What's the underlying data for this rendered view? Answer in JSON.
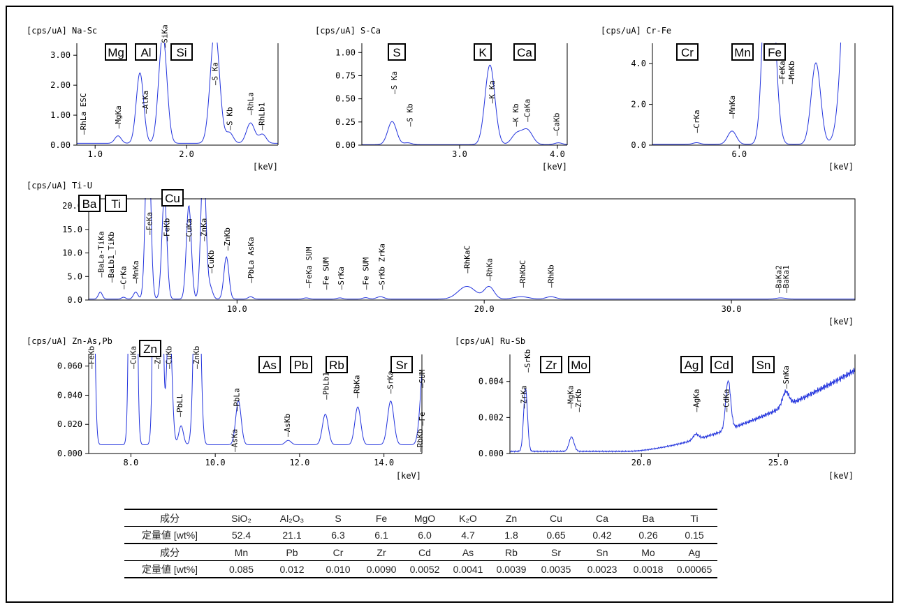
{
  "chart_data": [
    {
      "id": "na_sc",
      "type": "line",
      "title": "[cps/uA] Na-Sc",
      "xlabel": "[keV]",
      "xlim": [
        0.8,
        3.0
      ],
      "ylim": [
        0.0,
        3.4
      ],
      "xticks": [
        1.0,
        2.0
      ],
      "xtick_labels": [
        "1.0",
        "2.0"
      ],
      "yticks": [
        0.0,
        1.0,
        2.0,
        3.0
      ],
      "ytick_labels": [
        "0.00",
        "1.00",
        "2.00",
        "3.00"
      ],
      "baseline": 0.06,
      "peaks": [
        {
          "x": 1.25,
          "h": 0.25,
          "w": 0.035
        },
        {
          "x": 1.49,
          "h": 2.35,
          "w": 0.04
        },
        {
          "x": 1.74,
          "h": 3.6,
          "w": 0.045
        },
        {
          "x": 2.31,
          "h": 3.8,
          "w": 0.05
        },
        {
          "x": 2.47,
          "h": 0.35,
          "w": 0.04
        },
        {
          "x": 2.7,
          "h": 0.68,
          "w": 0.045
        },
        {
          "x": 2.83,
          "h": 0.3,
          "w": 0.04
        }
      ],
      "peak_labels": [
        {
          "text": "RhLa ESC",
          "x": 0.87,
          "y": 0.35
        },
        {
          "text": "MgKa",
          "x": 1.25,
          "y": 0.55
        },
        {
          "text": "AlKa",
          "x": 1.55,
          "y": 1.05
        },
        {
          "text": "SiKa",
          "x": 1.76,
          "y": 3.25
        },
        {
          "text": "S Ka",
          "x": 2.31,
          "y": 2.0
        },
        {
          "text": "S Kb",
          "x": 2.47,
          "y": 0.5
        },
        {
          "text": "RhLa",
          "x": 2.7,
          "y": 1.0
        },
        {
          "text": "RhLb1",
          "x": 2.82,
          "y": 0.5
        }
      ],
      "element_boxes": [
        "Mg",
        "Al",
        "Si"
      ]
    },
    {
      "id": "s_ca",
      "type": "line",
      "title": "[cps/uA] S-Ca",
      "xlabel": "[keV]",
      "xlim": [
        2.0,
        4.1
      ],
      "ylim": [
        0.0,
        1.1
      ],
      "xticks": [
        3.0,
        4.0
      ],
      "xtick_labels": [
        "3.0",
        "4.0"
      ],
      "yticks": [
        0.0,
        0.25,
        0.5,
        0.75,
        1.0
      ],
      "ytick_labels": [
        "0.00",
        "0.25",
        "0.50",
        "0.75",
        "1.00"
      ],
      "baseline": 0.005,
      "peaks": [
        {
          "x": 2.31,
          "h": 0.25,
          "w": 0.045
        },
        {
          "x": 2.47,
          "h": 0.02,
          "w": 0.04
        },
        {
          "x": 3.31,
          "h": 0.86,
          "w": 0.05
        },
        {
          "x": 3.58,
          "h": 0.11,
          "w": 0.05
        },
        {
          "x": 3.69,
          "h": 0.16,
          "w": 0.055
        },
        {
          "x": 4.01,
          "h": 0.02,
          "w": 0.04
        }
      ],
      "peak_labels": [
        {
          "text": "S Ka",
          "x": 2.33,
          "y": 0.55
        },
        {
          "text": "S Kb",
          "x": 2.49,
          "y": 0.2
        },
        {
          "text": "K Ka",
          "x": 3.33,
          "y": 0.45
        },
        {
          "text": "K Kb",
          "x": 3.57,
          "y": 0.2
        },
        {
          "text": "CaKa",
          "x": 3.69,
          "y": 0.25
        },
        {
          "text": "CaKb",
          "x": 3.99,
          "y": 0.1
        }
      ],
      "element_boxes": [
        "S",
        "K",
        "Ca"
      ]
    },
    {
      "id": "cr_fe",
      "type": "line",
      "title": "[cps/uA] Cr-Fe",
      "xlabel": "[keV]",
      "xlim": [
        4.8,
        7.6
      ],
      "ylim": [
        0.0,
        5.0
      ],
      "xticks": [
        6.0
      ],
      "xtick_labels": [
        "6.0"
      ],
      "yticks": [
        0.0,
        2.0,
        4.0
      ],
      "ytick_labels": [
        "0.0",
        "2.0",
        "4.0"
      ],
      "baseline": 0.04,
      "peaks": [
        {
          "x": 5.41,
          "h": 0.08,
          "w": 0.05
        },
        {
          "x": 5.9,
          "h": 0.65,
          "w": 0.06
        },
        {
          "x": 6.4,
          "h": 12.0,
          "w": 0.065
        },
        {
          "x": 6.49,
          "h": 2.0,
          "w": 0.06
        },
        {
          "x": 7.06,
          "h": 4.0,
          "w": 0.065
        },
        {
          "x": 7.6,
          "h": 25.0,
          "w": 0.11
        }
      ],
      "peak_labels": [
        {
          "text": "CrKa",
          "x": 5.41,
          "y": 0.6
        },
        {
          "text": "MnKa",
          "x": 5.9,
          "y": 1.3
        },
        {
          "text": "FeKa",
          "x": 6.59,
          "y": 3.0
        },
        {
          "text": "MnKb",
          "x": 6.72,
          "y": 3.0
        }
      ],
      "element_boxes": [
        "Cr",
        "Mn",
        "Fe"
      ]
    },
    {
      "id": "ti_u",
      "type": "line",
      "title": "[cps/uA] Ti-U",
      "xlabel": "[keV]",
      "xlim": [
        4.0,
        35.0
      ],
      "ylim": [
        0.0,
        21.5
      ],
      "xticks": [
        10.0,
        20.0,
        30.0
      ],
      "xtick_labels": [
        "10.0",
        "20.0",
        "30.0"
      ],
      "yticks": [
        0.0,
        5.0,
        10.0,
        15.0,
        20.0
      ],
      "ytick_labels": [
        "0.0",
        "5.0",
        "10.0",
        "15.0",
        "20.0"
      ],
      "baseline": 0.2,
      "peaks": [
        {
          "x": 4.47,
          "h": 1.5,
          "w": 0.08
        },
        {
          "x": 5.41,
          "h": 0.4,
          "w": 0.08
        },
        {
          "x": 5.9,
          "h": 1.5,
          "w": 0.09
        },
        {
          "x": 6.4,
          "h": 40,
          "w": 0.1
        },
        {
          "x": 7.06,
          "h": 22,
          "w": 0.1
        },
        {
          "x": 8.05,
          "h": 20,
          "w": 0.1
        },
        {
          "x": 8.64,
          "h": 30,
          "w": 0.1
        },
        {
          "x": 8.91,
          "h": 2.5,
          "w": 0.1
        },
        {
          "x": 9.57,
          "h": 9,
          "w": 0.1
        },
        {
          "x": 10.55,
          "h": 0.5,
          "w": 0.1
        },
        {
          "x": 12.8,
          "h": 0.25,
          "w": 0.12
        },
        {
          "x": 14.16,
          "h": 0.25,
          "w": 0.12
        },
        {
          "x": 15.2,
          "h": 0.3,
          "w": 0.12
        },
        {
          "x": 15.8,
          "h": 0.5,
          "w": 0.15
        },
        {
          "x": 19.3,
          "h": 2.7,
          "w": 0.35
        },
        {
          "x": 20.2,
          "h": 2.6,
          "w": 0.2
        },
        {
          "x": 21.5,
          "h": 0.5,
          "w": 0.3
        },
        {
          "x": 22.7,
          "h": 0.5,
          "w": 0.2
        },
        {
          "x": 32.0,
          "h": 0.25,
          "w": 0.2
        }
      ],
      "peak_labels": [
        {
          "text": "BaLa-TiKa",
          "x": 4.5,
          "y": 4.8
        },
        {
          "text": "BaLb1_TiKb",
          "x": 4.9,
          "y": 3.7
        },
        {
          "text": "CrKa",
          "x": 5.4,
          "y": 2.3
        },
        {
          "text": "MnKa",
          "x": 5.9,
          "y": 3.5
        },
        {
          "text": "FeKa",
          "x": 6.45,
          "y": 13.8
        },
        {
          "text": "FeKb",
          "x": 7.15,
          "y": 12.5
        },
        {
          "text": "CuKa",
          "x": 8.05,
          "y": 12.4
        },
        {
          "text": "ZnKa",
          "x": 8.65,
          "y": 12.5
        },
        {
          "text": "CuKb",
          "x": 8.95,
          "y": 5.7
        },
        {
          "text": "ZnKb",
          "x": 9.6,
          "y": 10.5
        },
        {
          "text": "PbLa AsKa",
          "x": 10.55,
          "y": 3.6
        },
        {
          "text": "FeKa SUM",
          "x": 12.9,
          "y": 2.5
        },
        {
          "text": "Fe SUM",
          "x": 13.6,
          "y": 2.2
        },
        {
          "text": "SrKa",
          "x": 14.2,
          "y": 2.2
        },
        {
          "text": "Fe SUM",
          "x": 15.2,
          "y": 2.2
        },
        {
          "text": "SrKb ZrKa",
          "x": 15.85,
          "y": 2.2
        },
        {
          "text": "RhKaC",
          "x": 19.3,
          "y": 5.7
        },
        {
          "text": "RhKa",
          "x": 20.2,
          "y": 4.0
        },
        {
          "text": "RhKbC",
          "x": 21.55,
          "y": 2.6
        },
        {
          "text": "RhKb",
          "x": 22.7,
          "y": 2.6
        },
        {
          "text": "BaKa2",
          "x": 31.9,
          "y": 1.5
        },
        {
          "text": "BaKa1",
          "x": 32.2,
          "y": 1.5
        }
      ],
      "element_boxes": [
        "Ba",
        "Ti",
        "Cu"
      ]
    },
    {
      "id": "zn_as_pb",
      "type": "line",
      "title": "[cps/uA] Zn-As,Pb",
      "xlabel": "[keV]",
      "xlim": [
        7.0,
        14.9
      ],
      "ylim": [
        0.0,
        0.068
      ],
      "xticks": [
        8.0,
        10.0,
        12.0,
        14.0
      ],
      "xtick_labels": [
        "8.0",
        "10.0",
        "12.0",
        "14.0"
      ],
      "yticks": [
        0.0,
        0.02,
        0.04,
        0.06
      ],
      "ytick_labels": [
        "0.000",
        "0.020",
        "0.040",
        "0.060"
      ],
      "baseline": 0.006,
      "peaks": [
        {
          "x": 7.06,
          "h": 0.3,
          "w": 0.055
        },
        {
          "x": 8.05,
          "h": 0.7,
          "w": 0.055
        },
        {
          "x": 8.64,
          "h": 0.9,
          "w": 0.06
        },
        {
          "x": 8.91,
          "h": 0.09,
          "w": 0.06
        },
        {
          "x": 9.19,
          "h": 0.013,
          "w": 0.055
        },
        {
          "x": 9.57,
          "h": 0.2,
          "w": 0.065
        },
        {
          "x": 10.55,
          "h": 0.03,
          "w": 0.065
        },
        {
          "x": 11.73,
          "h": 0.003,
          "w": 0.07
        },
        {
          "x": 12.61,
          "h": 0.021,
          "w": 0.07
        },
        {
          "x": 13.38,
          "h": 0.026,
          "w": 0.07
        },
        {
          "x": 14.16,
          "h": 0.03,
          "w": 0.075
        },
        {
          "x": 14.95,
          "h": 0.06,
          "w": 0.08
        }
      ],
      "peak_labels": [
        {
          "text": "FeKb",
          "x": 7.06,
          "y": 0.058
        },
        {
          "text": "CuKa",
          "x": 8.05,
          "y": 0.058
        },
        {
          "text": "ZnKa",
          "x": 8.63,
          "y": 0.058
        },
        {
          "text": "CuKb",
          "x": 8.9,
          "y": 0.058
        },
        {
          "text": "PbLL",
          "x": 9.15,
          "y": 0.025
        },
        {
          "text": "ZnKb",
          "x": 9.55,
          "y": 0.058
        },
        {
          "text": "PbLa",
          "x": 10.5,
          "y": 0.029
        },
        {
          "text": "AsKa",
          "x": 10.45,
          "y": 0.001
        },
        {
          "text": "AsKb",
          "x": 11.7,
          "y": 0.0115
        },
        {
          "text": "PbLb1",
          "x": 12.62,
          "y": 0.037
        },
        {
          "text": "RbKa",
          "x": 13.35,
          "y": 0.038
        },
        {
          "text": "SrKa",
          "x": 14.15,
          "y": 0.041
        },
        {
          "text": "SUM",
          "x": 14.9,
          "y": 0.045
        },
        {
          "text": "Fe",
          "x": 14.9,
          "y": 0.019
        },
        {
          "text": "RbKb",
          "x": 14.85,
          "y": 0.001
        }
      ],
      "element_boxes": [
        "Zn",
        "As",
        "Pb",
        "Rb",
        "Sr"
      ]
    },
    {
      "id": "ru_sb",
      "type": "line",
      "title": "[cps/uA] Ru-Sb",
      "xlabel": "[keV]",
      "xlim": [
        15.2,
        27.8
      ],
      "ylim": [
        0.0,
        0.0055
      ],
      "xticks": [
        20.0,
        25.0
      ],
      "xtick_labels": [
        "20.0",
        "25.0"
      ],
      "yticks": [
        0.0,
        0.002,
        0.004
      ],
      "ytick_labels": [
        "0.000",
        "0.002",
        "0.004"
      ],
      "baseline": 0.00012,
      "peaks": [
        {
          "x": 15.77,
          "h": 0.0035,
          "w": 0.07
        },
        {
          "x": 17.45,
          "h": 0.0008,
          "w": 0.09
        },
        {
          "x": 21.99,
          "h": 0.0003,
          "w": 0.1
        },
        {
          "x": 23.17,
          "h": 0.0027,
          "w": 0.09
        },
        {
          "x": 25.27,
          "h": 0.0008,
          "w": 0.12
        }
      ],
      "peak_labels": [
        {
          "text": "SrKb",
          "x": 15.84,
          "y": 0.0045
        },
        {
          "text": "ZrKa",
          "x": 15.7,
          "y": 0.0025
        },
        {
          "text": "MgKa",
          "x": 17.4,
          "y": 0.0025
        },
        {
          "text": "ZrKb",
          "x": 17.7,
          "y": 0.0023
        },
        {
          "text": "AgKa",
          "x": 22.0,
          "y": 0.0023
        },
        {
          "text": "CdKa",
          "x": 23.1,
          "y": 0.0023
        },
        {
          "text": "SnKa",
          "x": 25.27,
          "y": 0.0036
        }
      ],
      "element_boxes": [
        "Zr",
        "Mo",
        "Ag",
        "Cd",
        "Sn"
      ]
    },
    {
      "id": "results",
      "type": "table",
      "header_label": "成分",
      "value_label": "定量値 [wt%]",
      "rows": [
        {
          "components": [
            "SiO₂",
            "Al₂O₃",
            "S",
            "Fe",
            "MgO",
            "K₂O",
            "Zn",
            "Cu",
            "Ca",
            "Ba",
            "Ti"
          ],
          "values": [
            "52.4",
            "21.1",
            "6.3",
            "6.1",
            "6.0",
            "4.7",
            "1.8",
            "0.65",
            "0.42",
            "0.26",
            "0.15"
          ]
        },
        {
          "components": [
            "Mn",
            "Pb",
            "Cr",
            "Zr",
            "Cd",
            "As",
            "Rb",
            "Sr",
            "Sn",
            "Mo",
            "Ag"
          ],
          "values": [
            "0.085",
            "0.012",
            "0.010",
            "0.0090",
            "0.0052",
            "0.0041",
            "0.0039",
            "0.0035",
            "0.0023",
            "0.0018",
            "0.00065"
          ]
        }
      ]
    }
  ],
  "colors": {
    "trace": "#2233dd",
    "axis": "#000000",
    "frame": "#000000"
  }
}
